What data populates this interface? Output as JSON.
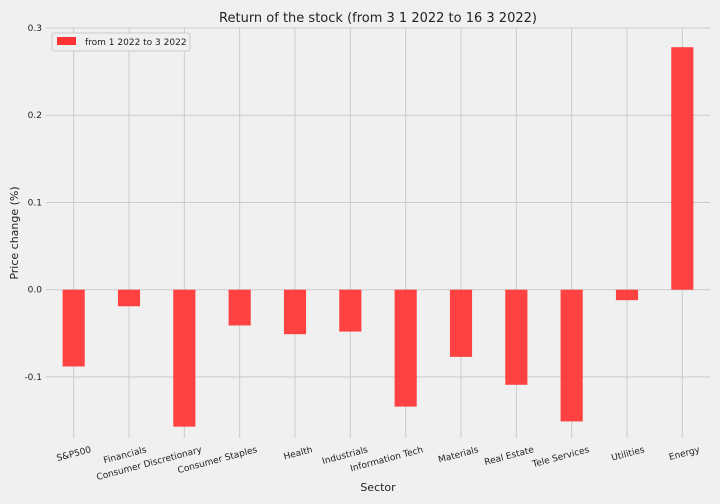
{
  "chart_data": {
    "type": "bar",
    "title": "Return of the stock (from 3 1 2022 to 16 3 2022)",
    "xlabel": "Sector",
    "ylabel": "Price change (%)",
    "ylim": [
      -0.17,
      0.3
    ],
    "yticks": [
      -0.1,
      0.0,
      0.1,
      0.2,
      0.3
    ],
    "ytick_labels": [
      "-0.1",
      "0.0",
      "0.1",
      "0.2",
      "0.3"
    ],
    "categories": [
      "S&P500",
      "Financials",
      "Consumer Discretionary",
      "Consumer Staples",
      "Health",
      "Industrials",
      "Information Tech",
      "Materials",
      "Real Estate",
      "Tele Services",
      "Utilities",
      "Energy"
    ],
    "series": [
      {
        "name": "from 1 2022 to 3 2022",
        "color": "#ff3333",
        "values": [
          -0.088,
          -0.019,
          -0.157,
          -0.041,
          -0.051,
          -0.048,
          -0.134,
          -0.077,
          -0.109,
          -0.151,
          -0.012,
          0.278
        ]
      }
    ],
    "grid": true,
    "legend": "top-left"
  }
}
